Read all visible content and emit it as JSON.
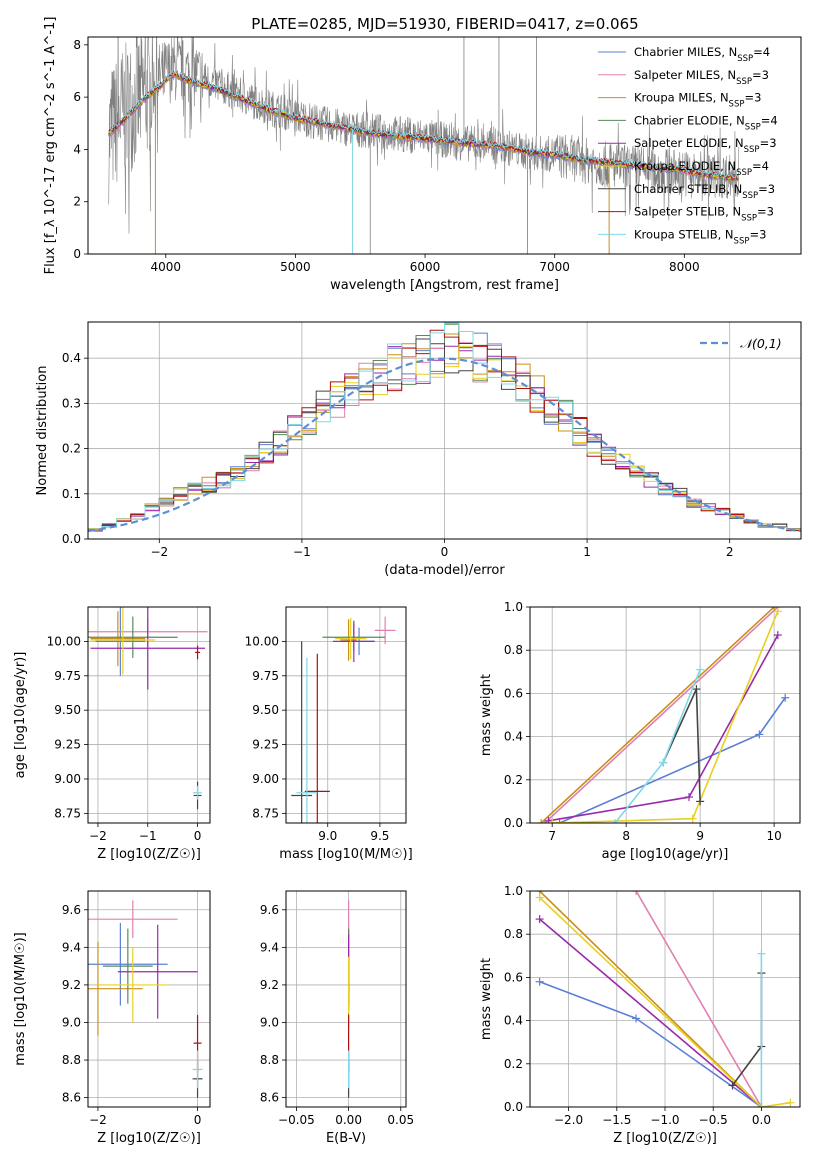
{
  "figure_title": "PLATE=0285, MJD=51930, FIBERID=0417, z=0.065",
  "colors": {
    "chabrier_miles": "#5b7fd6",
    "salpeter_miles": "#e080b0",
    "kroupa_miles": "#c8901a",
    "chabrier_elodie": "#5a8a5a",
    "salpeter_elodie": "#9a2aaa",
    "kroupa_elodie": "#e8d020",
    "chabrier_stelib": "#444444",
    "salpeter_stelib": "#b01010",
    "kroupa_stelib": "#80d8e8",
    "data": "#808080",
    "gaussian": "#5b8fd6",
    "grid": "#b0b0b0"
  },
  "chart_data": [
    {
      "id": "spectrum",
      "type": "line",
      "title": "",
      "xlabel": "wavelength [Angstrom, rest frame]",
      "ylabel": "Flux [f_λ 10^-17 erg cm^-2 s^-1 A^-1]",
      "xlim": [
        3400,
        8900
      ],
      "ylim": [
        0,
        8.3
      ],
      "xticks": [
        4000,
        5000,
        6000,
        7000,
        8000
      ],
      "yticks": [
        0,
        2,
        4,
        6,
        8
      ],
      "grid": false,
      "legend_position": "top-right",
      "legend": [
        "Chabrier MILES, N_SSP=4",
        "Salpeter MILES, N_SSP=3",
        "Kroupa MILES, N_SSP=3",
        "Chabrier ELODIE, N_SSP=4",
        "Salpeter ELODIE, N_SSP=3",
        "Kroupa ELODIE, N_SSP=4",
        "Chabrier STELIB, N_SSP=3",
        "Salpeter STELIB, N_SSP=3",
        "Kroupa STELIB, N_SSP=3"
      ],
      "data_continuum": {
        "x": [
          3560,
          3650,
          3750,
          3850,
          3950,
          4050,
          4200,
          4400,
          4600,
          4800,
          5000,
          5200,
          5400,
          5600,
          5800,
          6000,
          6200,
          6400,
          6600,
          6800,
          7000,
          7200,
          7400,
          7600,
          7800,
          8000,
          8200,
          8400
        ],
        "y": [
          4.5,
          5.3,
          5.8,
          6.2,
          6.8,
          7.1,
          6.9,
          6.5,
          6.0,
          5.6,
          5.3,
          5.0,
          4.8,
          4.7,
          4.6,
          4.5,
          4.3,
          4.2,
          4.1,
          3.9,
          3.8,
          3.6,
          3.4,
          3.3,
          3.2,
          3.1,
          3.0,
          3.0
        ]
      },
      "model_continuum": {
        "x": [
          3560,
          3650,
          3750,
          3850,
          3950,
          4050,
          4200,
          4400,
          4600,
          4800,
          5000,
          5200,
          5400,
          5600,
          5800,
          6000,
          6200,
          6400,
          6600,
          6800,
          7000,
          7200,
          7400,
          7600,
          7800,
          8000,
          8200,
          8400
        ],
        "y": [
          4.6,
          5.0,
          5.5,
          6.0,
          6.4,
          6.9,
          6.6,
          6.3,
          5.9,
          5.5,
          5.2,
          5.0,
          4.8,
          4.6,
          4.5,
          4.4,
          4.3,
          4.2,
          4.1,
          3.9,
          3.8,
          3.6,
          3.5,
          3.4,
          3.3,
          3.2,
          3.0,
          2.9
        ]
      }
    },
    {
      "id": "residuals",
      "type": "line",
      "xlabel": "(data-model)/error",
      "ylabel": "Normed distribution",
      "xlim": [
        -2.5,
        2.5
      ],
      "ylim": [
        0,
        0.48
      ],
      "xticks": [
        -2,
        -1,
        0,
        1,
        2
      ],
      "yticks": [
        0.0,
        0.1,
        0.2,
        0.3,
        0.4
      ],
      "grid": true,
      "legend_position": "top-right",
      "legend": [
        "𝒩(0,1)"
      ],
      "bin_width": 0.1,
      "histogram_base": [
        0.02,
        0.03,
        0.04,
        0.05,
        0.07,
        0.08,
        0.1,
        0.11,
        0.12,
        0.13,
        0.15,
        0.17,
        0.19,
        0.21,
        0.24,
        0.26,
        0.29,
        0.31,
        0.33,
        0.35,
        0.37,
        0.38,
        0.39,
        0.4,
        0.41,
        0.42,
        0.41,
        0.4,
        0.38,
        0.36,
        0.34,
        0.32,
        0.29,
        0.27,
        0.24,
        0.21,
        0.19,
        0.17,
        0.15,
        0.13,
        0.11,
        0.1,
        0.08,
        0.07,
        0.06,
        0.05,
        0.04,
        0.03,
        0.03,
        0.02
      ]
    },
    {
      "id": "z-age",
      "type": "scatter",
      "xlabel": "Z [log10(Z/Z☉)]",
      "ylabel": "age  [log10(age/yr)]",
      "xlim": [
        -2.2,
        0.25
      ],
      "ylim": [
        8.68,
        10.25
      ],
      "xticks": [
        -2,
        -1,
        0
      ],
      "yticks": [
        8.75,
        9.0,
        9.25,
        9.5,
        9.75,
        10.0
      ],
      "grid": true,
      "points": [
        {
          "series": "chabrier_miles",
          "x": -1.55,
          "y": 10.0,
          "xerr": 0.5,
          "yerr": 0.25
        },
        {
          "series": "salpeter_miles",
          "x": -1.0,
          "y": 10.07,
          "xerr": 1.2,
          "yerr": 0.1
        },
        {
          "series": "kroupa_miles",
          "x": -1.6,
          "y": 10.02,
          "xerr": 0.55,
          "yerr": 0.2
        },
        {
          "series": "chabrier_elodie",
          "x": -1.3,
          "y": 10.03,
          "xerr": 0.9,
          "yerr": 0.15
        },
        {
          "series": "salpeter_elodie",
          "x": -1.0,
          "y": 9.95,
          "xerr": 1.15,
          "yerr": 0.3
        },
        {
          "series": "kroupa_elodie",
          "x": -1.5,
          "y": 10.01,
          "xerr": 0.65,
          "yerr": 0.25
        },
        {
          "series": "chabrier_stelib",
          "x": 0.0,
          "y": 8.88,
          "xerr": 0.08,
          "yerr": 0.1
        },
        {
          "series": "salpeter_stelib",
          "x": 0.0,
          "y": 9.92,
          "xerr": 0.05,
          "yerr": 0.05
        },
        {
          "series": "kroupa_stelib",
          "x": 0.0,
          "y": 8.9,
          "xerr": 0.09,
          "yerr": 0.05
        }
      ]
    },
    {
      "id": "mass-age",
      "type": "scatter",
      "xlabel": "mass [log10(M/M☉)]",
      "ylabel": "",
      "xlim": [
        8.6,
        9.75
      ],
      "ylim": [
        8.68,
        10.25
      ],
      "xticks": [
        9.0,
        9.5
      ],
      "yticks": [
        8.75,
        9.0,
        9.25,
        9.5,
        9.75,
        10.0
      ],
      "grid": true,
      "points": [
        {
          "series": "chabrier_miles",
          "x": 9.3,
          "y": 10.0,
          "xerr": 0.15,
          "yerr": 0.1
        },
        {
          "series": "salpeter_miles",
          "x": 9.55,
          "y": 10.08,
          "xerr": 0.1,
          "yerr": 0.1
        },
        {
          "series": "kroupa_miles",
          "x": 9.2,
          "y": 10.01,
          "xerr": 0.08,
          "yerr": 0.15
        },
        {
          "series": "chabrier_elodie",
          "x": 9.25,
          "y": 10.03,
          "xerr": 0.3,
          "yerr": 0.1
        },
        {
          "series": "salpeter_elodie",
          "x": 9.25,
          "y": 10.0,
          "xerr": 0.2,
          "yerr": 0.15
        },
        {
          "series": "kroupa_elodie",
          "x": 9.22,
          "y": 10.02,
          "xerr": 0.15,
          "yerr": 0.15
        },
        {
          "series": "chabrier_stelib",
          "x": 8.75,
          "y": 8.88,
          "xerr": 0.1,
          "yerr": 1.12
        },
        {
          "series": "salpeter_stelib",
          "x": 8.9,
          "y": 8.91,
          "xerr": 0.12,
          "yerr": 1.0
        },
        {
          "series": "kroupa_stelib",
          "x": 8.8,
          "y": 8.9,
          "xerr": 0.1,
          "yerr": 0.98
        }
      ]
    },
    {
      "id": "age-weight",
      "type": "line",
      "xlabel": "age  [log10(age/yr)]",
      "ylabel": "mass weight",
      "xlim": [
        6.7,
        10.35
      ],
      "ylim": [
        0,
        1.0
      ],
      "xticks": [
        7,
        8,
        9,
        10
      ],
      "yticks": [
        0.0,
        0.2,
        0.4,
        0.6,
        0.8,
        1.0
      ],
      "grid": true,
      "series": [
        {
          "key": "chabrier_miles",
          "x": [
            7.1,
            9.8,
            10.15
          ],
          "y": [
            0.0,
            0.41,
            0.58
          ]
        },
        {
          "key": "salpeter_miles",
          "x": [
            6.9,
            10.05
          ],
          "y": [
            0.0,
            1.0
          ]
        },
        {
          "key": "kroupa_miles",
          "x": [
            6.85,
            10.0
          ],
          "y": [
            0.0,
            1.0
          ]
        },
        {
          "key": "salpeter_elodie",
          "x": [
            6.95,
            8.85,
            10.05
          ],
          "y": [
            0.01,
            0.12,
            0.87
          ]
        },
        {
          "key": "kroupa_elodie",
          "x": [
            7.0,
            8.9,
            10.05
          ],
          "y": [
            0.0,
            0.02,
            0.98
          ]
        },
        {
          "key": "chabrier_stelib",
          "x": [
            8.5,
            8.95,
            9.0
          ],
          "y": [
            0.28,
            0.62,
            0.1
          ]
        },
        {
          "key": "kroupa_stelib",
          "x": [
            7.85,
            8.5,
            9.0
          ],
          "y": [
            0.0,
            0.28,
            0.71
          ]
        }
      ]
    },
    {
      "id": "z-mass",
      "type": "scatter",
      "xlabel": "Z [log10(Z/Z☉)]",
      "ylabel": "mass [log10(M/M☉)]",
      "xlim": [
        -2.2,
        0.25
      ],
      "ylim": [
        8.55,
        9.7
      ],
      "xticks": [
        -2,
        0
      ],
      "yticks": [
        8.6,
        8.8,
        9.0,
        9.2,
        9.4,
        9.6
      ],
      "grid": true,
      "points": [
        {
          "series": "chabrier_miles",
          "x": -1.55,
          "y": 9.31,
          "xerr": 0.95,
          "yerr": 0.22
        },
        {
          "series": "salpeter_miles",
          "x": -1.3,
          "y": 9.55,
          "xerr": 0.9,
          "yerr": 0.1
        },
        {
          "series": "kroupa_miles",
          "x": -2.0,
          "y": 9.18,
          "xerr": 0.9,
          "yerr": 0.25
        },
        {
          "series": "chabrier_elodie",
          "x": -1.4,
          "y": 9.3,
          "xerr": 0.5,
          "yerr": 0.2
        },
        {
          "series": "salpeter_elodie",
          "x": -0.8,
          "y": 9.27,
          "xerr": 0.8,
          "yerr": 0.25
        },
        {
          "series": "kroupa_elodie",
          "x": -1.3,
          "y": 9.2,
          "xerr": 0.7,
          "yerr": 0.2
        },
        {
          "series": "chabrier_stelib",
          "x": 0.0,
          "y": 8.7,
          "xerr": 0.1,
          "yerr": 0.1
        },
        {
          "series": "salpeter_stelib",
          "x": 0.0,
          "y": 8.89,
          "xerr": 0.08,
          "yerr": 0.15
        },
        {
          "series": "kroupa_stelib",
          "x": 0.0,
          "y": 8.75,
          "xerr": 0.1,
          "yerr": 0.1
        }
      ]
    },
    {
      "id": "ebv-mass",
      "type": "scatter",
      "xlabel": "E(B-V)",
      "ylabel": "",
      "xlim": [
        -0.06,
        0.055
      ],
      "ylim": [
        8.55,
        9.7
      ],
      "xticks": [
        -0.05,
        0.0,
        0.05
      ],
      "yticks": [
        8.6,
        8.8,
        9.0,
        9.2,
        9.4,
        9.6
      ],
      "grid": true,
      "points": [
        {
          "series": "chabrier_miles",
          "x": 0.0,
          "y": 9.31,
          "xerr": 0,
          "yerr": 0.2
        },
        {
          "series": "salpeter_miles",
          "x": 0.0,
          "y": 9.55,
          "xerr": 0,
          "yerr": 0.1
        },
        {
          "series": "kroupa_miles",
          "x": 0.0,
          "y": 9.18,
          "xerr": 0,
          "yerr": 0.2
        },
        {
          "series": "chabrier_elodie",
          "x": 0.0,
          "y": 9.3,
          "xerr": 0,
          "yerr": 0.2
        },
        {
          "series": "salpeter_elodie",
          "x": 0.0,
          "y": 9.27,
          "xerr": 0,
          "yerr": 0.2
        },
        {
          "series": "kroupa_elodie",
          "x": 0.0,
          "y": 9.2,
          "xerr": 0,
          "yerr": 0.15
        },
        {
          "series": "chabrier_stelib",
          "x": 0.0,
          "y": 8.7,
          "xerr": 0,
          "yerr": 0.1
        },
        {
          "series": "salpeter_stelib",
          "x": 0.0,
          "y": 8.89,
          "xerr": 0,
          "yerr": 0.15
        },
        {
          "series": "kroupa_stelib",
          "x": 0.0,
          "y": 8.75,
          "xerr": 0,
          "yerr": 0.1
        }
      ]
    },
    {
      "id": "z-weight",
      "type": "line",
      "xlabel": "Z [log10(Z/Z☉)]",
      "ylabel": "mass weight",
      "xlim": [
        -2.4,
        0.4
      ],
      "ylim": [
        0,
        1.0
      ],
      "xticks": [
        -2.0,
        -1.5,
        -1.0,
        -0.5,
        0.0
      ],
      "yticks": [
        0.0,
        0.2,
        0.4,
        0.6,
        0.8,
        1.0
      ],
      "grid": true,
      "series": [
        {
          "key": "chabrier_miles",
          "x": [
            -2.3,
            -1.3,
            0.0
          ],
          "y": [
            0.58,
            0.41,
            0.0
          ]
        },
        {
          "key": "salpeter_miles",
          "x": [
            -1.3,
            0.0
          ],
          "y": [
            1.0,
            0.0
          ]
        },
        {
          "key": "kroupa_miles",
          "x": [
            -2.3,
            0.0
          ],
          "y": [
            1.0,
            0.0
          ]
        },
        {
          "key": "salpeter_elodie",
          "x": [
            -2.3,
            0.0
          ],
          "y": [
            0.87,
            0.0
          ]
        },
        {
          "key": "kroupa_elodie",
          "x": [
            -2.3,
            0.0,
            0.3
          ],
          "y": [
            0.97,
            0.0,
            0.02
          ]
        },
        {
          "key": "chabrier_stelib",
          "x": [
            -0.3,
            0.0,
            0.0
          ],
          "y": [
            0.1,
            0.28,
            0.62
          ]
        },
        {
          "key": "kroupa_stelib",
          "x": [
            0.0,
            0.0
          ],
          "y": [
            0.0,
            0.71
          ]
        }
      ]
    }
  ]
}
